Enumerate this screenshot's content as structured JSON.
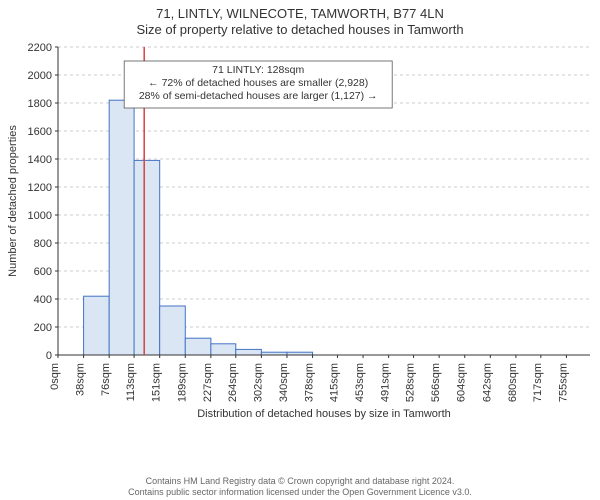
{
  "title_line1": "71, LINTLY, WILNECOTE, TAMWORTH, B77 4LN",
  "title_line2": "Size of property relative to detached houses in Tamworth",
  "ylabel": "Number of detached properties",
  "xlabel": "Distribution of detached houses by size in Tamworth",
  "footer_line1": "Contains HM Land Registry data © Crown copyright and database right 2024.",
  "footer_line2": "Contains public sector information licensed under the Open Government Licence v3.0.",
  "histogram": {
    "type": "bar",
    "bar_fill": "#dbe6f5",
    "bar_stroke": "#4472c4",
    "background_color": "#ffffff",
    "grid_color": "#cccccc",
    "axis_color": "#333333",
    "ylim": [
      0,
      2200
    ],
    "ytick_step": 200,
    "yticks": [
      0,
      200,
      400,
      600,
      800,
      1000,
      1200,
      1400,
      1600,
      1800,
      2000,
      2200
    ],
    "x_tick_labels": [
      "0sqm",
      "38sqm",
      "76sqm",
      "113sqm",
      "151sqm",
      "189sqm",
      "227sqm",
      "264sqm",
      "302sqm",
      "340sqm",
      "378sqm",
      "415sqm",
      "453sqm",
      "491sqm",
      "528sqm",
      "566sqm",
      "604sqm",
      "642sqm",
      "680sqm",
      "717sqm",
      "755sqm"
    ],
    "x_tick_positions": [
      0,
      38,
      76,
      113,
      151,
      189,
      227,
      264,
      302,
      340,
      378,
      415,
      453,
      491,
      528,
      566,
      604,
      642,
      680,
      717,
      755
    ],
    "xlim": [
      0,
      790
    ],
    "bars": [
      {
        "x0": 38,
        "x1": 76,
        "count": 420
      },
      {
        "x0": 76,
        "x1": 113,
        "count": 1820
      },
      {
        "x0": 113,
        "x1": 151,
        "count": 1390
      },
      {
        "x0": 151,
        "x1": 189,
        "count": 350
      },
      {
        "x0": 189,
        "x1": 227,
        "count": 120
      },
      {
        "x0": 227,
        "x1": 264,
        "count": 80
      },
      {
        "x0": 264,
        "x1": 302,
        "count": 40
      },
      {
        "x0": 302,
        "x1": 340,
        "count": 20
      },
      {
        "x0": 340,
        "x1": 378,
        "count": 20
      }
    ],
    "marker": {
      "value_sqm": 128,
      "color": "#d94040"
    },
    "annotation": {
      "lines": [
        "71 LINTLY: 128sqm",
        "← 72% of detached houses are smaller (2,928)",
        "28% of semi-detached houses are larger (1,127) →"
      ],
      "border_color": "#555555",
      "text_fontsize": 10.5
    },
    "label_fontsize": 11,
    "tick_fontsize": 11
  }
}
